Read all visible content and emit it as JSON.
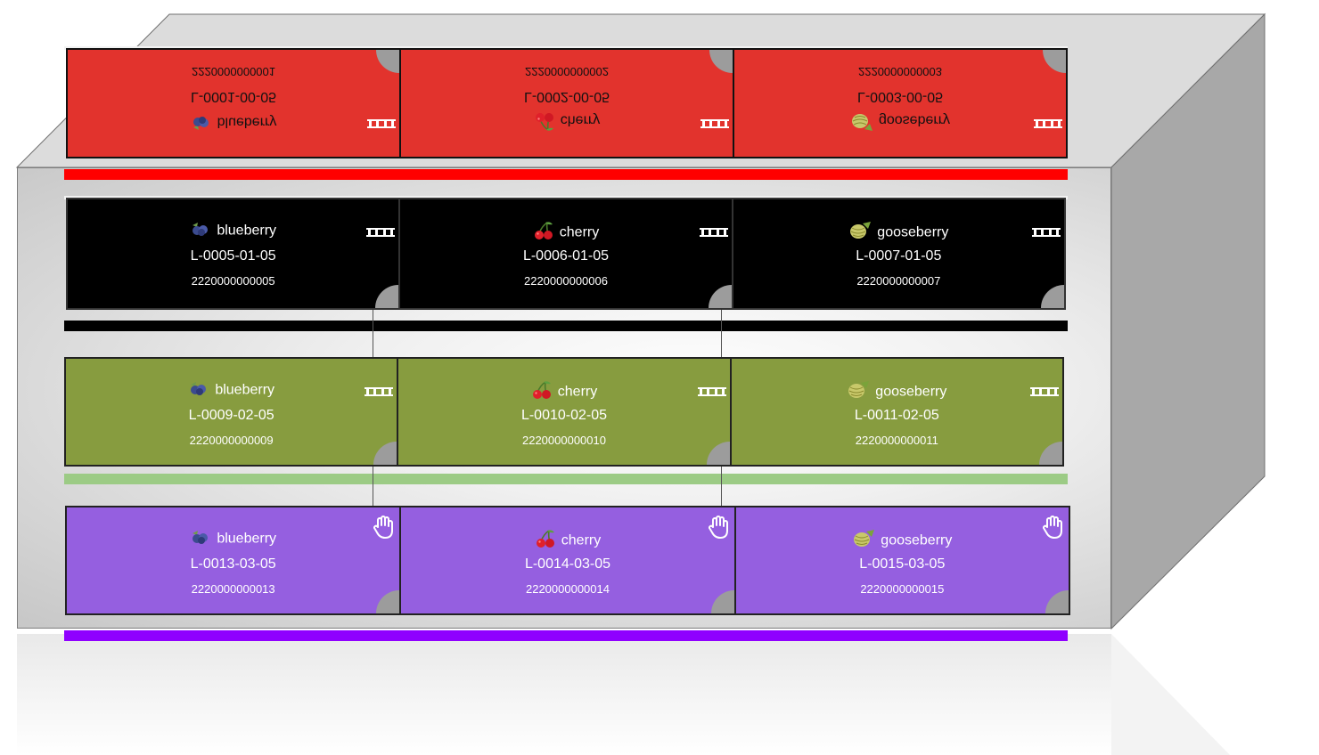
{
  "colors": {
    "red_row": "#e2332d",
    "red_bar": "#ff0000",
    "black_row": "#000000",
    "black_bar": "#000000",
    "green_row": "#879c3f",
    "green_bar": "#9ccb85",
    "purple_row": "#955fe0",
    "purple_bar": "#8f00ff"
  },
  "rows": [
    {
      "level": "red",
      "orientation": "flipped",
      "cells": [
        {
          "fruit": "blueberry",
          "icon": "blueberry-icon",
          "lot": "L-0001-00-05",
          "code": "2220000000001",
          "marker": "pallet-icon"
        },
        {
          "fruit": "cherry",
          "icon": "cherry-icon",
          "lot": "L-0002-00-05",
          "code": "2220000000002",
          "marker": "pallet-icon"
        },
        {
          "fruit": "gooseberry",
          "icon": "gooseberry-icon",
          "lot": "L-0003-00-05",
          "code": "2220000000003",
          "marker": "pallet-icon"
        }
      ]
    },
    {
      "level": "black",
      "orientation": "normal",
      "cells": [
        {
          "fruit": "blueberry",
          "icon": "blueberry-icon",
          "lot": "L-0005-01-05",
          "code": "2220000000005",
          "marker": "pallet-icon"
        },
        {
          "fruit": "cherry",
          "icon": "cherry-icon",
          "lot": "L-0006-01-05",
          "code": "2220000000006",
          "marker": "pallet-icon"
        },
        {
          "fruit": "gooseberry",
          "icon": "gooseberry-icon",
          "lot": "L-0007-01-05",
          "code": "2220000000007",
          "marker": "pallet-icon"
        }
      ]
    },
    {
      "level": "green",
      "orientation": "normal",
      "cells": [
        {
          "fruit": "blueberry",
          "icon": "blueberry-icon",
          "lot": "L-0009-02-05",
          "code": "2220000000009",
          "marker": "pallet-icon"
        },
        {
          "fruit": "cherry",
          "icon": "cherry-icon",
          "lot": "L-0010-02-05",
          "code": "2220000000010",
          "marker": "pallet-icon"
        },
        {
          "fruit": "gooseberry",
          "icon": "gooseberry-icon",
          "lot": "L-0011-02-05",
          "code": "2220000000011",
          "marker": "pallet-icon"
        }
      ]
    },
    {
      "level": "purple",
      "orientation": "normal",
      "cells": [
        {
          "fruit": "blueberry",
          "icon": "blueberry-icon",
          "lot": "L-0013-03-05",
          "code": "2220000000013",
          "marker": "hand-icon"
        },
        {
          "fruit": "cherry",
          "icon": "cherry-icon",
          "lot": "L-0014-03-05",
          "code": "2220000000014",
          "marker": "hand-icon"
        },
        {
          "fruit": "gooseberry",
          "icon": "gooseberry-icon",
          "lot": "L-0015-03-05",
          "code": "2220000000015",
          "marker": "hand-icon"
        }
      ]
    }
  ]
}
